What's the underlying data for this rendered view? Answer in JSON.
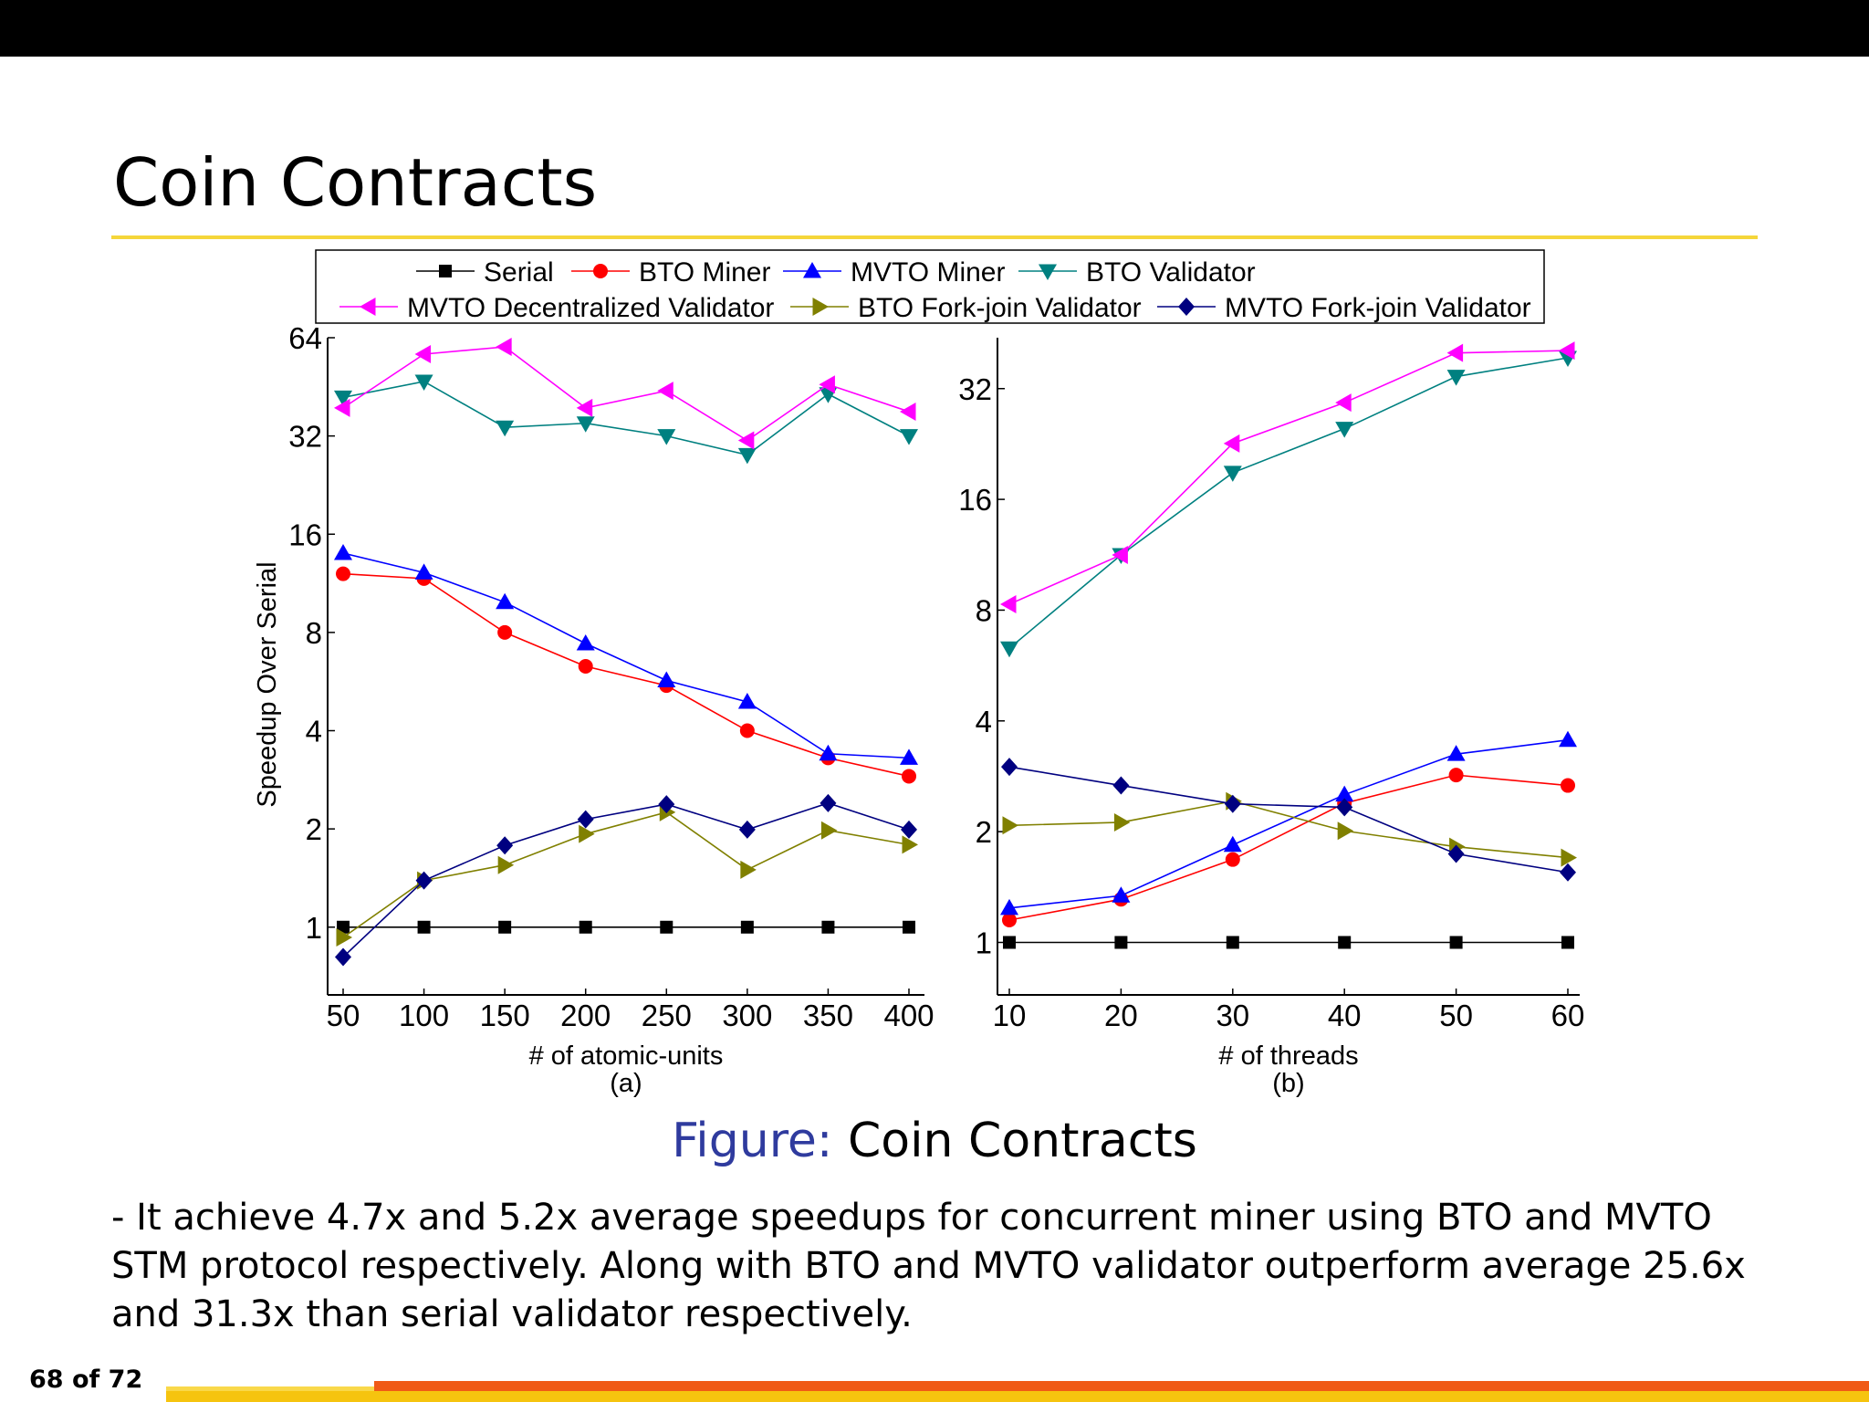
{
  "slide": {
    "title": "Coin Contracts",
    "caption_label": "Figure:",
    "caption_text": " Coin Contracts",
    "body": "- It achieve 4.7x and 5.2x average speedups for concurrent miner using BTO and MVTO STM protocol respectively. Along with BTO and MVTO validator outperform average 25.6x and 31.3x than serial validator respectively.",
    "page": "68 of 72"
  },
  "legend": [
    "Serial",
    "BTO Miner",
    "MVTO Miner",
    "BTO Validator",
    "MVTO Decentralized Validator",
    "BTO Fork-join Validator",
    "MVTO Fork-join Validator"
  ],
  "chart_data": [
    {
      "type": "line",
      "sublabel": "(a)",
      "xlabel": "# of atomic-units",
      "ylabel": "Speedup Over Serial",
      "yscale": "log2",
      "x": [
        50,
        100,
        150,
        200,
        250,
        300,
        350,
        400
      ],
      "xticks": [
        "50",
        "100",
        "150",
        "200",
        "250",
        "300",
        "350",
        "400"
      ],
      "yticks": [
        {
          "v": 1,
          "label": "1"
        },
        {
          "v": 2,
          "label": "2"
        },
        {
          "v": 4,
          "label": "4"
        },
        {
          "v": 8,
          "label": "8"
        },
        {
          "v": 16,
          "label": "16"
        },
        {
          "v": 32,
          "label": "32"
        },
        {
          "v": 64,
          "label": "64"
        }
      ],
      "ylim": [
        0.62,
        64
      ],
      "series": [
        {
          "name": "Serial",
          "marker": "square",
          "color": "#000000",
          "values": [
            1,
            1,
            1,
            1,
            1,
            1,
            1,
            1
          ]
        },
        {
          "name": "BTO Miner",
          "marker": "circle",
          "color": "#ff0000",
          "values": [
            12.1,
            11.7,
            8.0,
            6.3,
            5.5,
            4.0,
            3.3,
            2.9
          ]
        },
        {
          "name": "MVTO Miner",
          "marker": "triangle-up",
          "color": "#0000ff",
          "values": [
            14.0,
            12.2,
            9.9,
            7.4,
            5.7,
            4.9,
            3.4,
            3.3
          ]
        },
        {
          "name": "BTO Validator",
          "marker": "triangle-down",
          "color": "#008080",
          "values": [
            42,
            47,
            34,
            35,
            32,
            28,
            43,
            32
          ]
        },
        {
          "name": "MVTO Decentralized Validator",
          "marker": "triangle-left",
          "color": "#ff00ff",
          "values": [
            39,
            57,
            60,
            39,
            44,
            31,
            46,
            38
          ]
        },
        {
          "name": "BTO Fork-join Validator",
          "marker": "triangle-right",
          "color": "#808000",
          "values": [
            0.93,
            1.39,
            1.55,
            1.93,
            2.25,
            1.5,
            1.98,
            1.79
          ]
        },
        {
          "name": "MVTO Fork-join Validator",
          "marker": "diamond",
          "color": "#000080",
          "values": [
            0.81,
            1.39,
            1.78,
            2.14,
            2.38,
            1.99,
            2.4,
            1.99
          ]
        }
      ]
    },
    {
      "type": "line",
      "sublabel": "(b)",
      "xlabel": "# of threads",
      "yscale": "log2",
      "x": [
        10,
        20,
        30,
        40,
        50,
        60
      ],
      "xticks": [
        "10",
        "20",
        "30",
        "40",
        "50",
        "60"
      ],
      "yticks": [
        {
          "v": 1,
          "label": "1"
        },
        {
          "v": 2,
          "label": "2"
        },
        {
          "v": 4,
          "label": "4"
        },
        {
          "v": 8,
          "label": "8"
        },
        {
          "v": 16,
          "label": "16"
        },
        {
          "v": 32,
          "label": "32"
        }
      ],
      "ylim": [
        0.72,
        44
      ],
      "series": [
        {
          "name": "Serial",
          "marker": "square",
          "color": "#000000",
          "values": [
            1,
            1,
            1,
            1,
            1,
            1
          ]
        },
        {
          "name": "BTO Miner",
          "marker": "circle",
          "color": "#ff0000",
          "values": [
            1.15,
            1.31,
            1.68,
            2.39,
            2.85,
            2.67
          ]
        },
        {
          "name": "MVTO Miner",
          "marker": "triangle-up",
          "color": "#0000ff",
          "values": [
            1.24,
            1.34,
            1.84,
            2.52,
            3.25,
            3.55
          ]
        },
        {
          "name": "BTO Validator",
          "marker": "triangle-down",
          "color": "#008080",
          "values": [
            6.3,
            11.3,
            18.9,
            24.9,
            34.5,
            38.8
          ]
        },
        {
          "name": "MVTO Decentralized Validator",
          "marker": "triangle-left",
          "color": "#ff00ff",
          "values": [
            8.3,
            11.3,
            22.7,
            29.3,
            40.0,
            40.6
          ]
        },
        {
          "name": "BTO Fork-join Validator",
          "marker": "triangle-right",
          "color": "#808000",
          "values": [
            2.08,
            2.12,
            2.42,
            2.01,
            1.82,
            1.7
          ]
        },
        {
          "name": "MVTO Fork-join Validator",
          "marker": "diamond",
          "color": "#000080",
          "values": [
            3.0,
            2.67,
            2.38,
            2.33,
            1.74,
            1.55
          ]
        }
      ]
    }
  ]
}
